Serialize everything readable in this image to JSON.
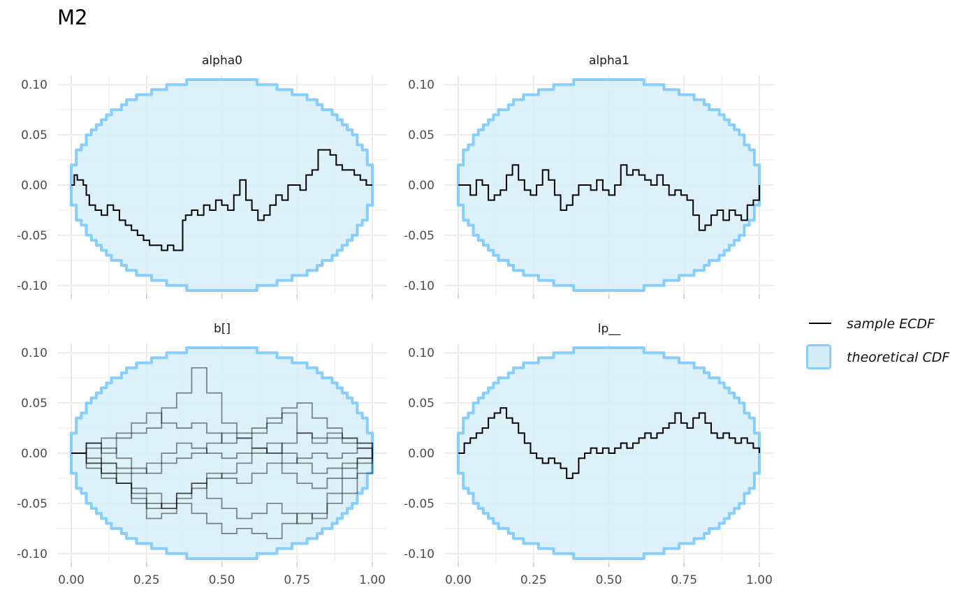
{
  "title": "M2",
  "colors": {
    "band_fill": "#d6eef8",
    "band_edge": "#87cefa",
    "ecdf": "#000000",
    "grid": "#ebebeb"
  },
  "legend": {
    "items": [
      {
        "label": "sample ECDF",
        "icon": "line"
      },
      {
        "label": "theoretical CDF",
        "icon": "filled-square"
      }
    ]
  },
  "chart_data": [
    {
      "type": "line",
      "panel": "alpha0",
      "title": "alpha0",
      "xlim": [
        0,
        1
      ],
      "ylim": [
        -0.105,
        0.105
      ],
      "x_ticks": [
        "0.00",
        "0.25",
        "0.50",
        "0.75",
        "1.00"
      ],
      "y_ticks": [
        "-0.10",
        "-0.05",
        "0.00",
        "0.05",
        "0.10"
      ],
      "band_halfwidth_max": 0.105,
      "series": [
        {
          "x": [
            0,
            0.01,
            0.02,
            0.04,
            0.05,
            0.06,
            0.08,
            0.1,
            0.12,
            0.14,
            0.16,
            0.18,
            0.2,
            0.22,
            0.24,
            0.26,
            0.28,
            0.3,
            0.32,
            0.34,
            0.36,
            0.37,
            0.38,
            0.4,
            0.42,
            0.44,
            0.46,
            0.48,
            0.5,
            0.52,
            0.54,
            0.56,
            0.58,
            0.6,
            0.62,
            0.64,
            0.66,
            0.68,
            0.7,
            0.72,
            0.74,
            0.76,
            0.78,
            0.8,
            0.82,
            0.84,
            0.86,
            0.88,
            0.9,
            0.92,
            0.94,
            0.96,
            0.98,
            1.0
          ],
          "y": [
            0,
            0.01,
            0.005,
            0.0,
            -0.01,
            -0.02,
            -0.025,
            -0.03,
            -0.02,
            -0.025,
            -0.035,
            -0.04,
            -0.045,
            -0.05,
            -0.055,
            -0.06,
            -0.06,
            -0.065,
            -0.06,
            -0.065,
            -0.065,
            -0.035,
            -0.03,
            -0.025,
            -0.03,
            -0.02,
            -0.025,
            -0.015,
            -0.02,
            -0.025,
            -0.01,
            0.005,
            -0.015,
            -0.025,
            -0.035,
            -0.03,
            -0.02,
            -0.01,
            -0.015,
            0.0,
            0.0,
            -0.005,
            0.01,
            0.015,
            0.035,
            0.035,
            0.03,
            0.02,
            0.015,
            0.015,
            0.01,
            0.005,
            0.0,
            0.0
          ]
        }
      ]
    },
    {
      "type": "line",
      "panel": "alpha1",
      "title": "alpha1",
      "xlim": [
        0,
        1
      ],
      "ylim": [
        -0.105,
        0.105
      ],
      "x_ticks": [
        "0.00",
        "0.25",
        "0.50",
        "0.75",
        "1.00"
      ],
      "y_ticks": [
        "-0.10",
        "-0.05",
        "0.00",
        "0.05",
        "0.10"
      ],
      "band_halfwidth_max": 0.105,
      "series": [
        {
          "x": [
            0,
            0.02,
            0.04,
            0.06,
            0.08,
            0.1,
            0.12,
            0.14,
            0.16,
            0.18,
            0.2,
            0.22,
            0.24,
            0.26,
            0.28,
            0.3,
            0.32,
            0.34,
            0.36,
            0.38,
            0.4,
            0.42,
            0.44,
            0.46,
            0.48,
            0.5,
            0.52,
            0.54,
            0.56,
            0.58,
            0.6,
            0.62,
            0.64,
            0.66,
            0.68,
            0.7,
            0.72,
            0.74,
            0.76,
            0.78,
            0.8,
            0.82,
            0.84,
            0.86,
            0.88,
            0.9,
            0.92,
            0.94,
            0.96,
            0.98,
            1.0
          ],
          "y": [
            0,
            0,
            -0.01,
            0.005,
            0.0,
            -0.015,
            -0.01,
            -0.005,
            0.01,
            0.02,
            0.005,
            -0.005,
            -0.01,
            0.0,
            0.015,
            0.005,
            -0.01,
            -0.025,
            -0.02,
            -0.01,
            0.0,
            0.0,
            -0.005,
            0.005,
            -0.005,
            -0.01,
            0.0,
            0.02,
            0.01,
            0.015,
            0.01,
            0.005,
            0.0,
            0.01,
            0.0,
            -0.01,
            -0.005,
            -0.01,
            -0.015,
            -0.03,
            -0.045,
            -0.04,
            -0.03,
            -0.025,
            -0.035,
            -0.025,
            -0.03,
            -0.035,
            -0.02,
            -0.015,
            0.0
          ]
        }
      ]
    },
    {
      "type": "line",
      "panel": "b[]",
      "title": "b[]",
      "xlim": [
        0,
        1
      ],
      "ylim": [
        -0.105,
        0.105
      ],
      "x_ticks": [
        "0.00",
        "0.25",
        "0.50",
        "0.75",
        "1.00"
      ],
      "y_ticks": [
        "-0.10",
        "-0.05",
        "0.00",
        "0.05",
        "0.10"
      ],
      "band_halfwidth_max": 0.105,
      "series": [
        {
          "x": [
            0,
            0.05,
            0.1,
            0.15,
            0.2,
            0.25,
            0.3,
            0.35,
            0.4,
            0.45,
            0.5,
            0.55,
            0.6,
            0.65,
            0.7,
            0.75,
            0.8,
            0.85,
            0.9,
            0.95,
            1.0
          ],
          "y": [
            0,
            0.01,
            0.0,
            0.015,
            0.02,
            0.025,
            0.045,
            0.06,
            0.085,
            0.06,
            0.03,
            0.02,
            0.025,
            0.03,
            0.04,
            0.02,
            0.01,
            0.015,
            0.01,
            0.005,
            0
          ]
        },
        {
          "x": [
            0,
            0.05,
            0.1,
            0.15,
            0.2,
            0.25,
            0.3,
            0.35,
            0.4,
            0.45,
            0.5,
            0.55,
            0.6,
            0.65,
            0.7,
            0.75,
            0.8,
            0.85,
            0.9,
            0.95,
            1.0
          ],
          "y": [
            0,
            -0.01,
            -0.02,
            -0.03,
            -0.05,
            -0.065,
            -0.06,
            -0.04,
            -0.03,
            -0.045,
            -0.055,
            -0.065,
            -0.06,
            -0.05,
            -0.06,
            -0.07,
            -0.06,
            -0.04,
            -0.025,
            -0.01,
            0
          ]
        },
        {
          "x": [
            0,
            0.05,
            0.1,
            0.15,
            0.2,
            0.25,
            0.3,
            0.35,
            0.4,
            0.45,
            0.5,
            0.55,
            0.6,
            0.65,
            0.7,
            0.75,
            0.8,
            0.85,
            0.9,
            0.95,
            1.0
          ],
          "y": [
            0,
            0.005,
            -0.01,
            -0.02,
            -0.035,
            -0.04,
            -0.055,
            -0.05,
            -0.06,
            -0.07,
            -0.08,
            -0.075,
            -0.08,
            -0.085,
            -0.07,
            -0.06,
            -0.065,
            -0.05,
            -0.04,
            -0.02,
            0
          ]
        },
        {
          "x": [
            0,
            0.05,
            0.1,
            0.15,
            0.2,
            0.25,
            0.3,
            0.35,
            0.4,
            0.45,
            0.5,
            0.55,
            0.6,
            0.65,
            0.7,
            0.75,
            0.8,
            0.85,
            0.9,
            0.95,
            1.0
          ],
          "y": [
            0,
            0.01,
            0.015,
            0.02,
            0.03,
            0.04,
            0.03,
            0.025,
            0.03,
            0.02,
            0.01,
            0.015,
            0.02,
            0.035,
            0.045,
            0.05,
            0.035,
            0.025,
            0.015,
            0.01,
            0
          ]
        },
        {
          "x": [
            0,
            0.05,
            0.1,
            0.15,
            0.2,
            0.25,
            0.3,
            0.35,
            0.4,
            0.45,
            0.5,
            0.55,
            0.6,
            0.65,
            0.7,
            0.75,
            0.8,
            0.85,
            0.9,
            0.95,
            1.0
          ],
          "y": [
            0,
            -0.005,
            -0.01,
            -0.015,
            -0.02,
            -0.01,
            0.0,
            0.01,
            0.005,
            0.0,
            -0.005,
            0.0,
            0.005,
            0.0,
            -0.01,
            -0.005,
            0.0,
            -0.005,
            0.0,
            0.005,
            0
          ]
        },
        {
          "x": [
            0,
            0.05,
            0.1,
            0.15,
            0.2,
            0.25,
            0.3,
            0.35,
            0.4,
            0.45,
            0.5,
            0.55,
            0.6,
            0.65,
            0.7,
            0.75,
            0.8,
            0.85,
            0.9,
            0.95,
            1.0
          ],
          "y": [
            0,
            -0.01,
            -0.02,
            -0.03,
            -0.045,
            -0.055,
            -0.05,
            -0.04,
            -0.03,
            -0.02,
            -0.025,
            -0.03,
            -0.02,
            -0.01,
            -0.02,
            -0.03,
            -0.035,
            -0.025,
            -0.015,
            -0.005,
            0
          ]
        },
        {
          "x": [
            0,
            0.05,
            0.1,
            0.15,
            0.2,
            0.25,
            0.3,
            0.35,
            0.4,
            0.45,
            0.5,
            0.55,
            0.6,
            0.65,
            0.7,
            0.75,
            0.8,
            0.85,
            0.9,
            0.95,
            1.0
          ],
          "y": [
            0,
            0.01,
            0.005,
            -0.005,
            -0.015,
            -0.02,
            -0.01,
            -0.005,
            0.0,
            0.01,
            0.02,
            0.015,
            0.005,
            0.0,
            0.01,
            0.02,
            0.015,
            0.02,
            0.015,
            0.01,
            0
          ]
        },
        {
          "x": [
            0,
            0.05,
            0.1,
            0.15,
            0.2,
            0.25,
            0.3,
            0.35,
            0.4,
            0.45,
            0.5,
            0.55,
            0.6,
            0.65,
            0.7,
            0.75,
            0.8,
            0.85,
            0.9,
            0.95,
            1.0
          ],
          "y": [
            0,
            -0.015,
            -0.025,
            -0.03,
            -0.04,
            -0.05,
            -0.055,
            -0.045,
            -0.035,
            -0.025,
            -0.02,
            -0.01,
            0.0,
            0.01,
            0.0,
            -0.01,
            -0.02,
            -0.015,
            -0.01,
            -0.005,
            0
          ]
        }
      ]
    },
    {
      "type": "line",
      "panel": "lp__",
      "title": "lp__",
      "xlim": [
        0,
        1
      ],
      "ylim": [
        -0.105,
        0.105
      ],
      "x_ticks": [
        "0.00",
        "0.25",
        "0.50",
        "0.75",
        "1.00"
      ],
      "y_ticks": [
        "-0.10",
        "-0.05",
        "0.00",
        "0.05",
        "0.10"
      ],
      "band_halfwidth_max": 0.105,
      "series": [
        {
          "x": [
            0,
            0.02,
            0.04,
            0.06,
            0.08,
            0.1,
            0.12,
            0.14,
            0.16,
            0.18,
            0.2,
            0.22,
            0.24,
            0.26,
            0.28,
            0.3,
            0.32,
            0.34,
            0.36,
            0.38,
            0.4,
            0.42,
            0.44,
            0.46,
            0.48,
            0.5,
            0.52,
            0.54,
            0.56,
            0.58,
            0.6,
            0.62,
            0.64,
            0.66,
            0.68,
            0.7,
            0.72,
            0.74,
            0.76,
            0.78,
            0.8,
            0.82,
            0.84,
            0.86,
            0.88,
            0.9,
            0.92,
            0.94,
            0.96,
            0.98,
            1.0
          ],
          "y": [
            0,
            0.01,
            0.015,
            0.02,
            0.025,
            0.035,
            0.04,
            0.045,
            0.035,
            0.03,
            0.02,
            0.01,
            0.0,
            -0.005,
            -0.01,
            -0.005,
            -0.01,
            -0.015,
            -0.025,
            -0.02,
            -0.005,
            0.0,
            0.005,
            0.0,
            0.005,
            0.0,
            0.005,
            0.01,
            0.005,
            0.01,
            0.015,
            0.02,
            0.015,
            0.02,
            0.025,
            0.03,
            0.04,
            0.03,
            0.025,
            0.035,
            0.04,
            0.03,
            0.02,
            0.015,
            0.02,
            0.015,
            0.01,
            0.015,
            0.01,
            0.005,
            0.0
          ]
        }
      ]
    }
  ]
}
